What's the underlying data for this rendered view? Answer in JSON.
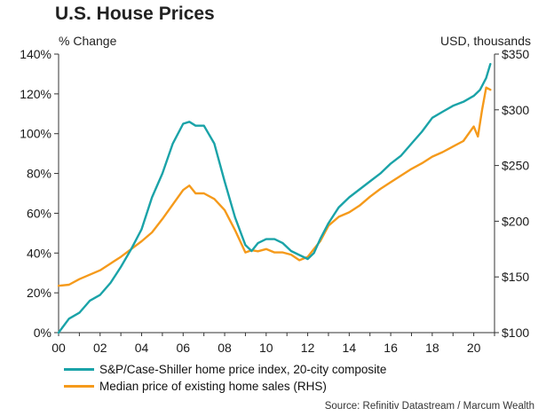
{
  "chart_data": {
    "type": "line",
    "title": "U.S. House Prices",
    "ylabel_left": "% Change",
    "ylabel_right": "USD, thousands",
    "xlim": [
      2000,
      2021
    ],
    "ylim_left": [
      0,
      140
    ],
    "ylim_right": [
      100,
      350
    ],
    "x_ticks": [
      {
        "value": 2000,
        "label": "00"
      },
      {
        "value": 2002,
        "label": "02"
      },
      {
        "value": 2004,
        "label": "04"
      },
      {
        "value": 2006,
        "label": "06"
      },
      {
        "value": 2008,
        "label": "08"
      },
      {
        "value": 2010,
        "label": "10"
      },
      {
        "value": 2012,
        "label": "12"
      },
      {
        "value": 2014,
        "label": "14"
      },
      {
        "value": 2016,
        "label": "16"
      },
      {
        "value": 2018,
        "label": "18"
      },
      {
        "value": 2020,
        "label": "20"
      }
    ],
    "y_ticks_left": [
      {
        "value": 0,
        "label": "0%"
      },
      {
        "value": 20,
        "label": "20%"
      },
      {
        "value": 40,
        "label": "40%"
      },
      {
        "value": 60,
        "label": "60%"
      },
      {
        "value": 80,
        "label": "80%"
      },
      {
        "value": 100,
        "label": "100%"
      },
      {
        "value": 120,
        "label": "120%"
      },
      {
        "value": 140,
        "label": "140%"
      }
    ],
    "y_ticks_right": [
      {
        "value": 100,
        "label": "$100"
      },
      {
        "value": 150,
        "label": "$150"
      },
      {
        "value": 200,
        "label": "$200"
      },
      {
        "value": 250,
        "label": "$250"
      },
      {
        "value": 300,
        "label": "$300"
      },
      {
        "value": 350,
        "label": "$350"
      }
    ],
    "grid": false,
    "legend_position": "bottom-left",
    "series": [
      {
        "name": "S&P/Case-Shiller home price index, 20-city composite",
        "axis": "left",
        "color": "#1aa3a8",
        "x": [
          2000,
          2000.5,
          2001,
          2001.5,
          2002,
          2002.5,
          2003,
          2003.5,
          2004,
          2004.5,
          2005,
          2005.5,
          2006,
          2006.3,
          2006.6,
          2007,
          2007.5,
          2008,
          2008.5,
          2009,
          2009.3,
          2009.6,
          2010,
          2010.4,
          2010.8,
          2011.2,
          2011.6,
          2012,
          2012.3,
          2012.6,
          2013,
          2013.5,
          2014,
          2014.5,
          2015,
          2015.5,
          2016,
          2016.5,
          2017,
          2017.5,
          2018,
          2018.5,
          2019,
          2019.5,
          2020,
          2020.3,
          2020.6,
          2020.8
        ],
        "values": [
          0,
          7,
          10,
          16,
          19,
          25,
          33,
          42,
          52,
          68,
          80,
          95,
          105,
          106,
          104,
          104,
          95,
          76,
          58,
          44,
          41,
          45,
          47,
          47,
          45,
          41,
          39,
          37,
          40,
          47,
          55,
          63,
          68,
          72,
          76,
          80,
          85,
          89,
          95,
          101,
          108,
          111,
          114,
          116,
          119,
          122,
          128,
          135
        ]
      },
      {
        "name": "Median price of existing home sales (RHS)",
        "axis": "right",
        "color": "#f59a1b",
        "x": [
          2000,
          2000.5,
          2001,
          2001.5,
          2002,
          2002.5,
          2003,
          2003.5,
          2004,
          2004.5,
          2005,
          2005.5,
          2006,
          2006.3,
          2006.6,
          2007,
          2007.5,
          2008,
          2008.5,
          2009,
          2009.3,
          2009.6,
          2010,
          2010.4,
          2010.8,
          2011.2,
          2011.6,
          2012,
          2012.3,
          2012.6,
          2013,
          2013.5,
          2014,
          2014.5,
          2015,
          2015.5,
          2016,
          2016.5,
          2017,
          2017.5,
          2018,
          2018.5,
          2019,
          2019.5,
          2020,
          2020.2,
          2020.4,
          2020.6,
          2020.8
        ],
        "values": [
          142,
          143,
          148,
          152,
          156,
          162,
          168,
          175,
          182,
          190,
          202,
          215,
          228,
          232,
          225,
          225,
          220,
          210,
          192,
          172,
          174,
          173,
          175,
          172,
          172,
          170,
          165,
          168,
          175,
          182,
          196,
          204,
          208,
          214,
          222,
          229,
          235,
          241,
          247,
          252,
          258,
          262,
          267,
          272,
          285,
          276,
          300,
          320,
          318
        ]
      }
    ],
    "source": "Source: Refinitiv Datastream / Marcum Wealth"
  }
}
